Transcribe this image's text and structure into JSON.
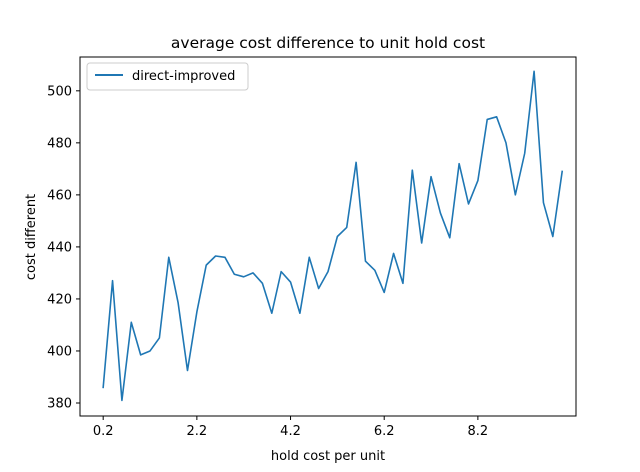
{
  "chart_data": {
    "type": "line",
    "title": "average cost difference to unit hold cost",
    "xlabel": "hold cost per unit",
    "ylabel": "cost different",
    "xlim": [
      -0.295,
      10.295
    ],
    "ylim": [
      375,
      513
    ],
    "x_ticks": [
      0.2,
      2.2,
      4.2,
      6.2,
      8.2
    ],
    "x_tick_labels": [
      "0.2",
      "2.2",
      "4.2",
      "6.2",
      "8.2"
    ],
    "y_ticks": [
      380,
      400,
      420,
      440,
      460,
      480,
      500
    ],
    "y_tick_labels": [
      "380",
      "400",
      "420",
      "440",
      "460",
      "480",
      "500"
    ],
    "grid": false,
    "legend_position": "upper-left",
    "series": [
      {
        "name": "direct-improved",
        "color": "#1f77b4",
        "x": [
          0.2,
          0.4,
          0.6,
          0.8,
          1.0,
          1.2,
          1.4,
          1.6,
          1.8,
          2.0,
          2.2,
          2.4,
          2.6,
          2.8,
          3.0,
          3.2,
          3.4,
          3.6,
          3.8,
          4.0,
          4.2,
          4.4,
          4.6,
          4.8,
          5.0,
          5.2,
          5.4,
          5.6,
          5.8,
          6.0,
          6.2,
          6.4,
          6.6,
          6.8,
          7.0,
          7.2,
          7.4,
          7.6,
          7.8,
          8.0,
          8.2,
          8.4,
          8.6,
          8.8,
          9.0,
          9.2,
          9.4,
          9.6,
          9.8,
          10.0
        ],
        "y": [
          386,
          427,
          381,
          411,
          398.5,
          400,
          405,
          436,
          418.5,
          392.5,
          415,
          433,
          436.5,
          436,
          429.5,
          428.5,
          430,
          426,
          414.5,
          430.5,
          426.5,
          414.5,
          436,
          424,
          430.5,
          444,
          447.5,
          472.5,
          434.5,
          431,
          422.5,
          437.5,
          426,
          469.5,
          441.5,
          467,
          453,
          443.5,
          472,
          456.5,
          465.5,
          489,
          490,
          480,
          460,
          476,
          507.5,
          457,
          444,
          469
        ]
      }
    ]
  }
}
